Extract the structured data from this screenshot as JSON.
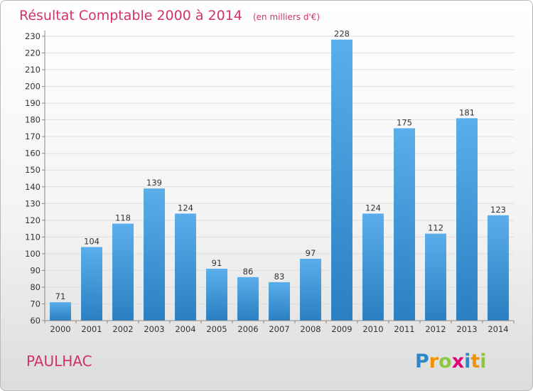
{
  "chart_data": {
    "type": "bar",
    "title": "Résultat Comptable 2000 à 2014",
    "unit_note": "(en milliers d'€)",
    "xlabel": "",
    "ylabel": "",
    "ylim": [
      60,
      230
    ],
    "y_ticks": [
      60,
      70,
      80,
      90,
      100,
      110,
      120,
      130,
      140,
      150,
      160,
      170,
      180,
      190,
      200,
      210,
      220,
      230
    ],
    "grid": true,
    "categories": [
      "2000",
      "2001",
      "2002",
      "2003",
      "2004",
      "2005",
      "2006",
      "2007",
      "2008",
      "2009",
      "2010",
      "2011",
      "2012",
      "2013",
      "2014"
    ],
    "values": [
      71,
      104,
      118,
      139,
      124,
      91,
      86,
      83,
      97,
      228,
      124,
      175,
      112,
      181,
      123
    ]
  },
  "place_name": "PAULHAC",
  "brand": {
    "name": "Proxiti",
    "letters": [
      "P",
      "r",
      "o",
      "x",
      "i",
      "t",
      "i"
    ],
    "letter_colors": [
      "#2e86c8",
      "#f39200",
      "#8dc63f",
      "#e2007a",
      "#2e86c8",
      "#f39200",
      "#8dc63f"
    ]
  },
  "colors": {
    "bar_top": "#5aaeea",
    "bar_bottom": "#2a7fc2",
    "grid": "#dddddd",
    "accent": "#d2326a"
  }
}
